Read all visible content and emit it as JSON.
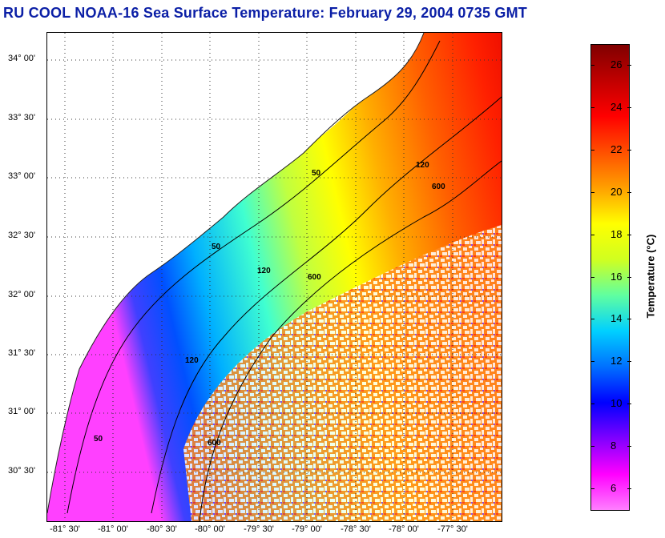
{
  "title": "RU COOL  NOAA-16  Sea Surface Temperature:  February 29, 2004 0735 GMT",
  "map": {
    "lat_labels": [
      "34° 00'",
      "33° 30'",
      "33° 00'",
      "32° 30'",
      "32° 00'",
      "31° 30'",
      "31° 00'",
      "30° 30'"
    ],
    "lon_labels": [
      "-81° 30'",
      "-81° 00'",
      "-80° 30'",
      "-80° 00'",
      "-79° 30'",
      "-79° 00'",
      "-78° 30'",
      "-78° 00'",
      "-77° 30'"
    ],
    "isobath_labels": [
      "50",
      "120",
      "600"
    ],
    "cloud_color": "#ffffff",
    "land_color": "#ffffff"
  },
  "colorbar": {
    "label": "Temperature (°C)",
    "ticks": [
      "26",
      "24",
      "22",
      "20",
      "18",
      "16",
      "14",
      "12",
      "10",
      "8",
      "6"
    ],
    "min": 5,
    "max": 27,
    "colors": [
      "#ff7fff",
      "#ff00ff",
      "#8000ff",
      "#0000ff",
      "#0070ff",
      "#00d0ff",
      "#60ffa0",
      "#d0ff20",
      "#ffff00",
      "#ffa000",
      "#ff5000",
      "#ff0000",
      "#c00000",
      "#800000"
    ]
  }
}
